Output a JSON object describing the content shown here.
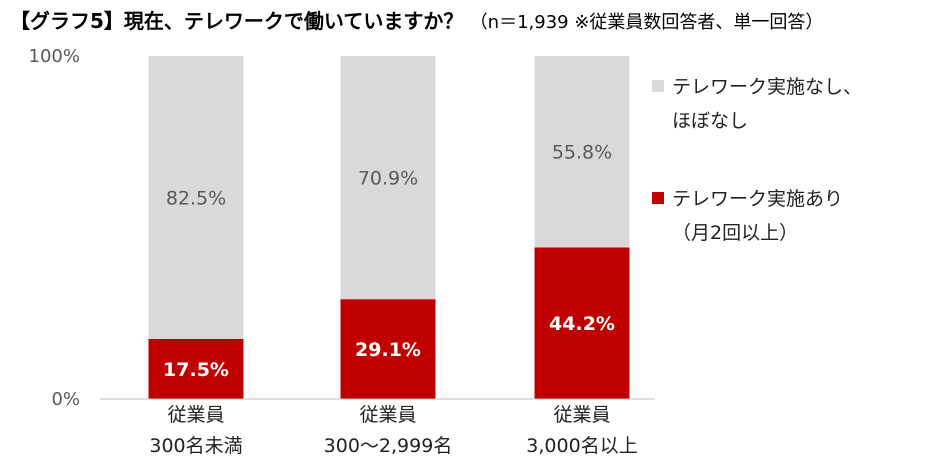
{
  "title": {
    "main": "【グラフ5】現在、テレワークで働いていますか？",
    "note": "（n＝1,939 ※従業員数回答者、単一回答）"
  },
  "chart_data": {
    "type": "bar",
    "stacked": true,
    "percent": true,
    "categories": [
      [
        "従業員",
        "300名未満"
      ],
      [
        "従業員",
        "300～2,999名"
      ],
      [
        "従業員",
        "3,000名以上"
      ]
    ],
    "series": [
      {
        "name_lines": [
          "テレワーク実施あり",
          "（月2回以上）"
        ],
        "values": [
          17.5,
          29.1,
          44.2
        ],
        "labels": [
          "17.5%",
          "29.1%",
          "44.2%"
        ],
        "color": "#c00000",
        "label_color": "#ffffff"
      },
      {
        "name_lines": [
          "テレワーク実施なし、",
          "ほぼなし"
        ],
        "values": [
          82.5,
          70.9,
          55.8
        ],
        "labels": [
          "82.5%",
          "70.9%",
          "55.8%"
        ],
        "color": "#d9d9d9",
        "label_color": "#595959"
      }
    ],
    "ylim": [
      0,
      100
    ],
    "yticks": [
      "0%",
      "100%"
    ],
    "grid": false,
    "legend_position": "right"
  }
}
